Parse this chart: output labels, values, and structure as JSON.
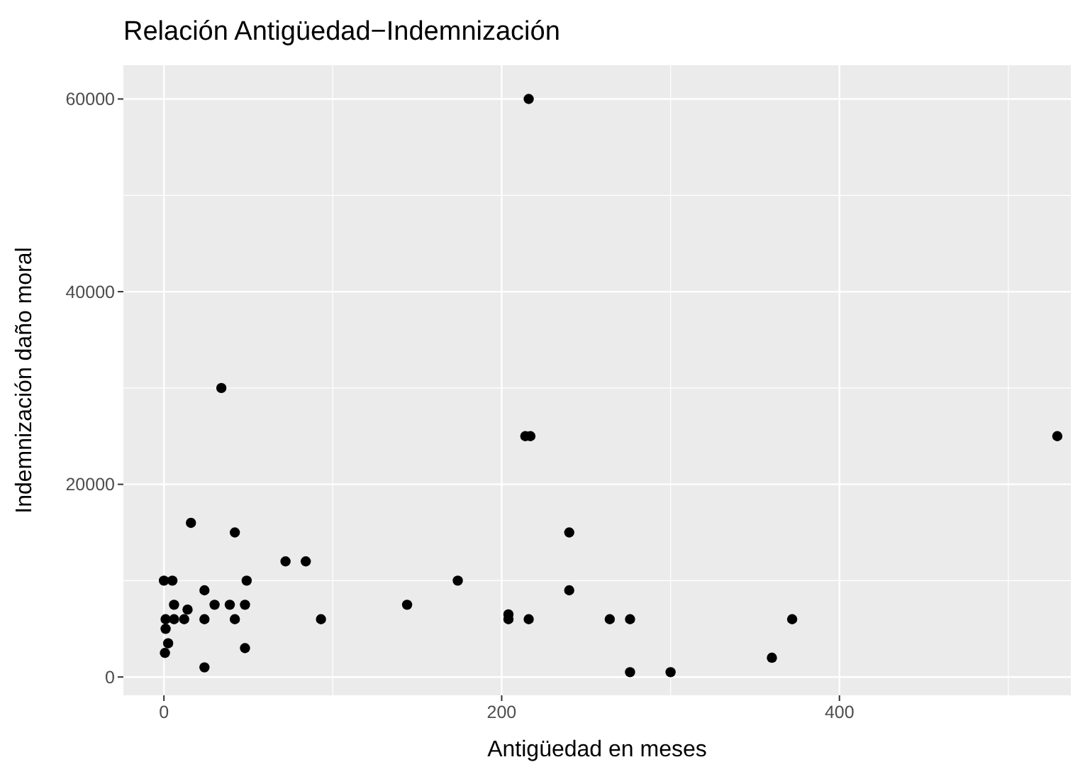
{
  "chart_data": {
    "type": "scatter",
    "title": "Relación Antigüedad−Indemnización",
    "xlabel": "Antigüedad en meses",
    "ylabel": "Indemnización daño moral",
    "color": "#000000",
    "marker": "circle",
    "grid": true,
    "x": [
      216,
      34,
      16,
      42,
      72,
      84,
      0,
      5,
      49,
      24,
      6,
      14,
      30,
      39,
      48,
      144,
      1,
      6,
      12,
      24,
      42,
      93,
      1,
      2.5,
      0.6,
      48,
      24,
      214,
      217,
      529,
      240,
      174,
      240,
      204,
      204,
      216,
      264,
      276,
      276,
      300,
      360,
      372
    ],
    "values": [
      60000,
      30000,
      16000,
      15000,
      12000,
      12000,
      10000,
      10000,
      10000,
      9000,
      7500,
      7000,
      7500,
      7500,
      7500,
      7500,
      6000,
      6000,
      6000,
      6000,
      6000,
      6000,
      5000,
      3500,
      2500,
      3000,
      1000,
      25000,
      25000,
      25000,
      15000,
      10000,
      9000,
      6000,
      6500,
      6000,
      6000,
      6000,
      500,
      500,
      2000,
      6000
    ],
    "xlim": [
      -24,
      537
    ],
    "ylim": [
      -1900,
      63500
    ],
    "xticks": [
      0,
      200,
      400
    ],
    "yticks": [
      0,
      20000,
      40000,
      60000
    ]
  }
}
